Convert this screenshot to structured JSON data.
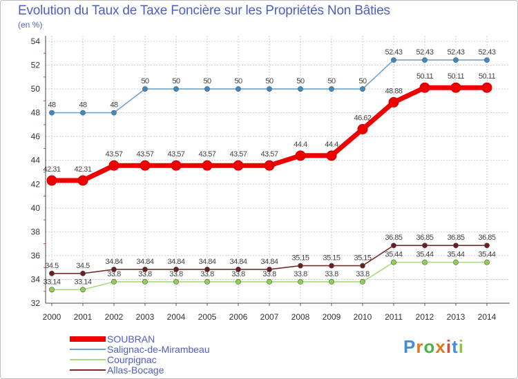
{
  "title": "Evolution du Taux de Taxe Foncière sur les Propriétés Non Bâties",
  "unit_label": "(en %)",
  "logo_text": "Proxiti",
  "chart_data": {
    "type": "line",
    "title": "Evolution du Taux de Taxe Foncière sur les Propriétés Non Bâties",
    "ylabel": "(en %)",
    "xlabel": "",
    "ylim": [
      32,
      54
    ],
    "yticks": [
      32,
      34,
      36,
      38,
      40,
      42,
      44,
      46,
      48,
      50,
      52,
      54
    ],
    "x": [
      "2000",
      "2001",
      "2002",
      "2003",
      "2004",
      "2005",
      "2006",
      "2007",
      "2008",
      "2009",
      "2010",
      "2011",
      "2012",
      "2013",
      "2014"
    ],
    "series": [
      {
        "name": "SOUBRAN",
        "color": "#ee0000",
        "marker_color": "#ee0000",
        "emphasis": true,
        "values": [
          42.31,
          42.31,
          43.57,
          43.57,
          43.57,
          43.57,
          43.57,
          43.57,
          44.4,
          44.4,
          46.62,
          48.88,
          50.11,
          50.11,
          50.11
        ],
        "labels": [
          "42.31",
          "42.31",
          "43.57",
          "43.57",
          "43.57",
          "43.57",
          "43.57",
          "43.57",
          "44.4",
          "44.4",
          "46.62",
          "48.88",
          "50.11",
          "50.11",
          "50.11"
        ]
      },
      {
        "name": "Salignac-de-Mirambeau",
        "color": "#6fa3cf",
        "marker_color": "#3d8ac2",
        "emphasis": false,
        "values": [
          48,
          48,
          48,
          50,
          50,
          50,
          50,
          50,
          50,
          50,
          50,
          52.43,
          52.43,
          52.43,
          52.43
        ],
        "labels": [
          "48",
          "48",
          "48",
          "50",
          "50",
          "50",
          "50",
          "50",
          "50",
          "50",
          "50",
          "52.43",
          "52.43",
          "52.43",
          "52.43"
        ]
      },
      {
        "name": "Courpignac",
        "color": "#a6dc7a",
        "marker_color": "#8fd050",
        "emphasis": false,
        "values": [
          33.14,
          33.14,
          33.8,
          33.8,
          33.8,
          33.8,
          33.8,
          33.8,
          33.8,
          33.8,
          33.8,
          35.44,
          35.44,
          35.44,
          35.44
        ],
        "labels": [
          "33.14",
          "33.14",
          "33.8",
          "33.8",
          "33.8",
          "33.8",
          "33.8",
          "33.8",
          "33.8",
          "33.8",
          "33.8",
          "35.44",
          "35.44",
          "35.44",
          "35.44"
        ]
      },
      {
        "name": "Allas-Bocage",
        "color": "#7a2a2a",
        "marker_color": "#6b1d1d",
        "emphasis": false,
        "values": [
          34.5,
          34.5,
          34.84,
          34.84,
          34.84,
          34.84,
          34.84,
          34.84,
          35.15,
          35.15,
          35.15,
          36.85,
          36.85,
          36.85,
          36.85
        ],
        "labels": [
          "34.5",
          "34.5",
          "34.84",
          "34.84",
          "34.84",
          "34.84",
          "34.84",
          "34.84",
          "35.15",
          "35.15",
          "35.15",
          "36.85",
          "36.85",
          "36.85",
          "36.85"
        ]
      }
    ]
  }
}
